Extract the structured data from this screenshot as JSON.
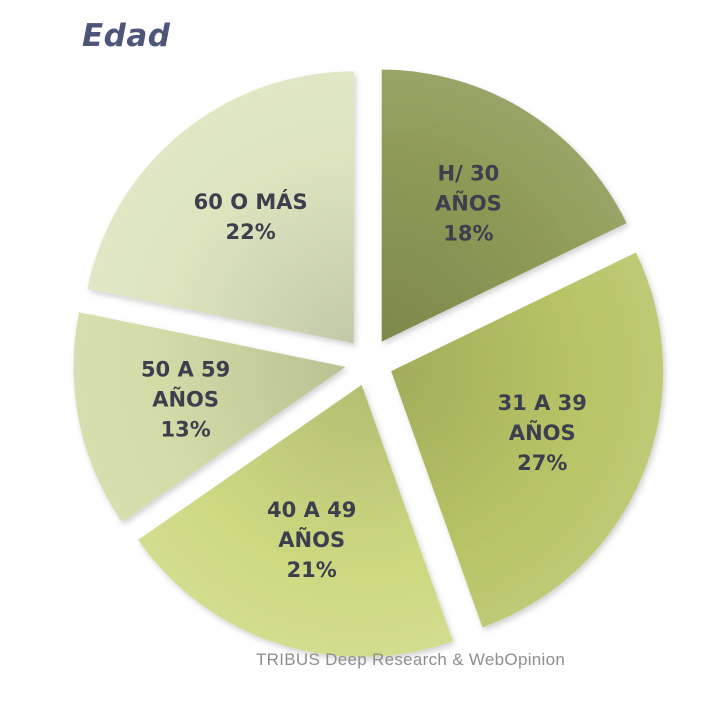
{
  "chart_data": {
    "type": "pie",
    "title": "Edad",
    "slices": [
      {
        "label": [
          "H/ 30",
          "AÑOS"
        ],
        "value": 18,
        "value_label": "18%",
        "color": "#8e9b56"
      },
      {
        "label": [
          "31 A 39",
          "AÑOS"
        ],
        "value": 27,
        "value_label": "27%",
        "color": "#b9c366"
      },
      {
        "label": [
          "40 A 49",
          "AÑOS"
        ],
        "value": 21,
        "value_label": "21%",
        "color": "#cfd881"
      },
      {
        "label": [
          "50 A 59",
          "AÑOS"
        ],
        "value": 13,
        "value_label": "13%",
        "color": "#d3dba7"
      },
      {
        "label": [
          "60 O MÁS"
        ],
        "value": 22,
        "value_label": "22%",
        "color": "#dde4bf"
      }
    ],
    "exploded": true,
    "legend": "none"
  },
  "source_note": "TRIBUS Deep Research & WebOpinion"
}
